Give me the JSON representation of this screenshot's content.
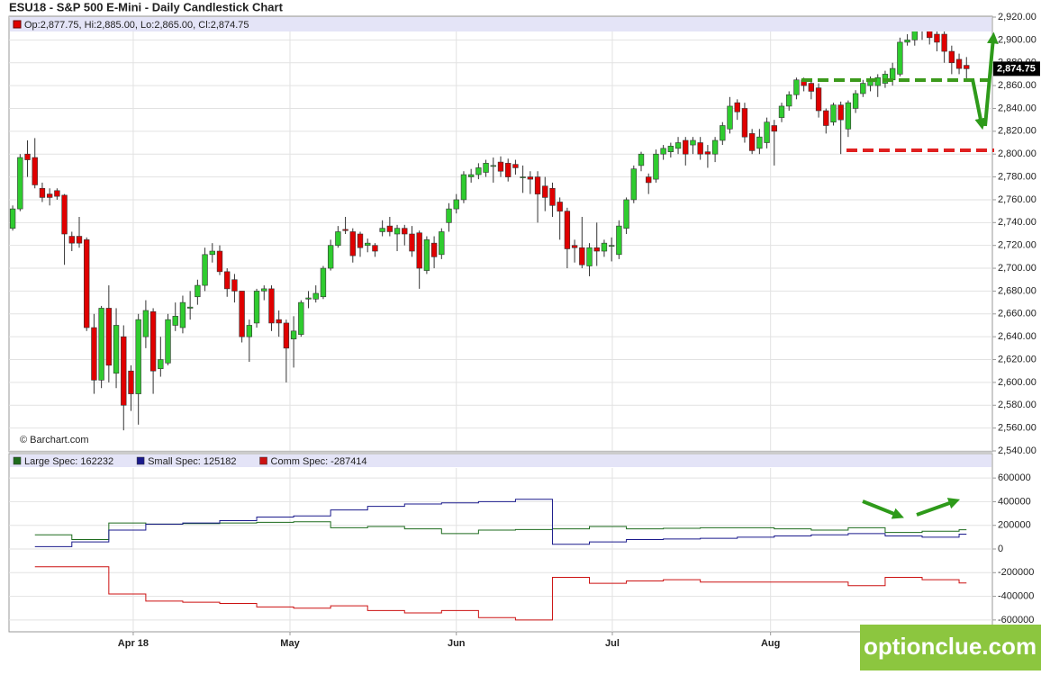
{
  "chart_data": [
    {
      "type": "candlestick",
      "title": "ESU18 - S&P 500 E-Mini - Daily Candlestick Chart",
      "ohlc_legend": "Op:2,877.75, Hi:2,885.00, Lo:2,865.00, Cl:2,874.75",
      "source": "© Barchart.com",
      "last_price": 2874.75,
      "last_price_label": "2,874.75",
      "up_color": "#2fcc2f",
      "down_color": "#e00000",
      "open": [
        2735,
        2752,
        2800,
        2797,
        2770,
        2765,
        2768,
        2764,
        2728,
        2728,
        2725,
        2648,
        2602,
        2665,
        2608,
        2640,
        2610,
        2590,
        2640,
        2662,
        2612,
        2617,
        2650,
        2648,
        2665,
        2675,
        2685,
        2712,
        2715,
        2697,
        2690,
        2680,
        2640,
        2652,
        2680,
        2682,
        2655,
        2652,
        2638,
        2642,
        2673,
        2673,
        2675,
        2700,
        2720,
        2734,
        2732,
        2730,
        2720,
        2720,
        2732,
        2737,
        2730,
        2735,
        2730,
        2731,
        2698,
        2722,
        2712,
        2740,
        2752,
        2760,
        2780,
        2782,
        2784,
        2790,
        2793,
        2792,
        2791,
        2780,
        2780,
        2780,
        2772,
        2770,
        2758,
        2750,
        2720,
        2718,
        2702,
        2718,
        2715,
        2720,
        2712,
        2735,
        2760,
        2790,
        2780,
        2778,
        2800,
        2802,
        2805,
        2812,
        2808,
        2810,
        2802,
        2800,
        2812,
        2822,
        2845,
        2840,
        2818,
        2805,
        2810,
        2825,
        2832,
        2842,
        2852,
        2865,
        2862,
        2858,
        2838,
        2828,
        2843,
        2822,
        2840,
        2853,
        2860,
        2860,
        2862,
        2865,
        2870,
        2898,
        2900,
        2910,
        2915,
        2905,
        2905,
        2890,
        2883,
        2877.75
      ],
      "high": [
        2755,
        2800,
        2812,
        2814,
        2775,
        2770,
        2770,
        2765,
        2732,
        2745,
        2727,
        2660,
        2667,
        2685,
        2665,
        2650,
        2615,
        2660,
        2672,
        2665,
        2640,
        2660,
        2670,
        2676,
        2680,
        2690,
        2718,
        2722,
        2720,
        2700,
        2695,
        2680,
        2655,
        2682,
        2685,
        2685,
        2663,
        2655,
        2658,
        2672,
        2680,
        2685,
        2702,
        2725,
        2737,
        2745,
        2735,
        2732,
        2726,
        2722,
        2742,
        2745,
        2738,
        2738,
        2737,
        2733,
        2728,
        2728,
        2735,
        2757,
        2765,
        2785,
        2787,
        2792,
        2795,
        2797,
        2798,
        2796,
        2795,
        2790,
        2785,
        2785,
        2780,
        2775,
        2762,
        2753,
        2725,
        2745,
        2722,
        2740,
        2725,
        2727,
        2742,
        2762,
        2790,
        2802,
        2783,
        2804,
        2808,
        2810,
        2815,
        2815,
        2815,
        2815,
        2808,
        2815,
        2828,
        2850,
        2848,
        2845,
        2822,
        2822,
        2832,
        2830,
        2845,
        2855,
        2867,
        2867,
        2865,
        2862,
        2840,
        2845,
        2846,
        2847,
        2856,
        2865,
        2868,
        2870,
        2873,
        2880,
        2902,
        2905,
        2918,
        2920,
        2918,
        2912,
        2908,
        2895,
        2888,
        2885
      ],
      "low": [
        2733,
        2750,
        2780,
        2770,
        2758,
        2755,
        2760,
        2703,
        2715,
        2718,
        2645,
        2590,
        2595,
        2600,
        2595,
        2558,
        2575,
        2563,
        2630,
        2590,
        2605,
        2615,
        2645,
        2643,
        2655,
        2668,
        2680,
        2705,
        2694,
        2675,
        2670,
        2635,
        2618,
        2648,
        2672,
        2645,
        2640,
        2600,
        2613,
        2640,
        2665,
        2670,
        2673,
        2698,
        2718,
        2730,
        2705,
        2710,
        2714,
        2710,
        2728,
        2728,
        2715,
        2720,
        2710,
        2682,
        2695,
        2700,
        2708,
        2732,
        2748,
        2757,
        2775,
        2778,
        2780,
        2775,
        2780,
        2776,
        2782,
        2766,
        2765,
        2740,
        2750,
        2745,
        2725,
        2700,
        2705,
        2700,
        2693,
        2702,
        2710,
        2706,
        2708,
        2730,
        2757,
        2785,
        2765,
        2775,
        2795,
        2797,
        2800,
        2790,
        2800,
        2795,
        2788,
        2793,
        2808,
        2818,
        2830,
        2810,
        2800,
        2800,
        2805,
        2790,
        2828,
        2838,
        2848,
        2855,
        2848,
        2832,
        2818,
        2825,
        2800,
        2815,
        2836,
        2850,
        2855,
        2850,
        2858,
        2860,
        2868,
        2895,
        2895,
        2900,
        2896,
        2890,
        2880,
        2870,
        2870,
        2865
      ],
      "close": [
        2752,
        2797,
        2795,
        2773,
        2762,
        2762,
        2763,
        2730,
        2722,
        2722,
        2648,
        2602,
        2665,
        2615,
        2650,
        2580,
        2590,
        2655,
        2663,
        2610,
        2620,
        2655,
        2658,
        2670,
        2666,
        2685,
        2712,
        2715,
        2697,
        2682,
        2680,
        2640,
        2650,
        2680,
        2682,
        2652,
        2652,
        2630,
        2645,
        2670,
        2674,
        2678,
        2700,
        2720,
        2732,
        2733,
        2711,
        2718,
        2722,
        2715,
        2735,
        2732,
        2735,
        2730,
        2715,
        2700,
        2725,
        2710,
        2732,
        2752,
        2760,
        2782,
        2782,
        2788,
        2792,
        2790,
        2785,
        2780,
        2788,
        2780,
        2778,
        2765,
        2762,
        2755,
        2750,
        2717,
        2718,
        2703,
        2718,
        2715,
        2722,
        2720,
        2737,
        2760,
        2787,
        2800,
        2775,
        2800,
        2805,
        2807,
        2810,
        2800,
        2812,
        2800,
        2800,
        2812,
        2825,
        2842,
        2837,
        2815,
        2803,
        2815,
        2828,
        2820,
        2842,
        2852,
        2865,
        2860,
        2855,
        2838,
        2825,
        2843,
        2830,
        2845,
        2853,
        2862,
        2865,
        2867,
        2870,
        2875,
        2898,
        2900,
        2915,
        2917,
        2902,
        2898,
        2890,
        2880,
        2875,
        2874.75
      ],
      "xlim": [
        -0.5,
        132.5
      ],
      "xticks": [
        {
          "value": 16.3,
          "label": "Apr 18"
        },
        {
          "value": 37.5,
          "label": "May"
        },
        {
          "value": 60,
          "label": "Jun"
        },
        {
          "value": 81.1,
          "label": "Jul"
        },
        {
          "value": 102.5,
          "label": "Aug"
        }
      ],
      "ylim": [
        2540,
        2920
      ],
      "yticks": [
        {
          "value": 2540,
          "label": "2,540.00"
        },
        {
          "value": 2560,
          "label": "2,560.00"
        },
        {
          "value": 2580,
          "label": "2,580.00"
        },
        {
          "value": 2600,
          "label": "2,600.00"
        },
        {
          "value": 2620,
          "label": "2,620.00"
        },
        {
          "value": 2640,
          "label": "2,640.00"
        },
        {
          "value": 2660,
          "label": "2,660.00"
        },
        {
          "value": 2680,
          "label": "2,680.00"
        },
        {
          "value": 2700,
          "label": "2,700.00"
        },
        {
          "value": 2720,
          "label": "2,720.00"
        },
        {
          "value": 2740,
          "label": "2,740.00"
        },
        {
          "value": 2760,
          "label": "2,760.00"
        },
        {
          "value": 2780,
          "label": "2,780.00"
        },
        {
          "value": 2800,
          "label": "2,800.00"
        },
        {
          "value": 2820,
          "label": "2,820.00"
        },
        {
          "value": 2840,
          "label": "2,840.00"
        },
        {
          "value": 2860,
          "label": "2,860.00"
        },
        {
          "value": 2880,
          "label": "2,880.00"
        },
        {
          "value": 2900,
          "label": "2,900.00"
        },
        {
          "value": 2920,
          "label": "2,920.00"
        }
      ],
      "grid": true
    },
    {
      "type": "step",
      "x": [
        3,
        8,
        13,
        18,
        23,
        28,
        33,
        38,
        43,
        48,
        53,
        58,
        63,
        68,
        73,
        78,
        83,
        88,
        93,
        98,
        103,
        108,
        113,
        118,
        123,
        128
      ],
      "xlim": [
        -0.5,
        132.5
      ],
      "series": [
        {
          "name": "Large Spec",
          "legend_label": "Large Spec: 162232",
          "color": "#1d6b1d",
          "values": [
            120000,
            80000,
            220000,
            210000,
            215000,
            220000,
            225000,
            230000,
            180000,
            190000,
            170000,
            130000,
            160000,
            165000,
            170000,
            190000,
            170000,
            175000,
            180000,
            180000,
            170000,
            160000,
            180000,
            140000,
            150000,
            162232
          ]
        },
        {
          "name": "Small Spec",
          "legend_label": "Small Spec: 125182",
          "color": "#1a1a8c",
          "values": [
            20000,
            60000,
            160000,
            210000,
            220000,
            240000,
            270000,
            280000,
            330000,
            360000,
            380000,
            390000,
            400000,
            420000,
            40000,
            60000,
            80000,
            85000,
            90000,
            100000,
            110000,
            120000,
            130000,
            110000,
            100000,
            125182
          ]
        },
        {
          "name": "Comm Spec",
          "legend_label": "Comm Spec: -287414",
          "color": "#cc1111",
          "values": [
            -150000,
            -150000,
            -380000,
            -440000,
            -450000,
            -460000,
            -490000,
            -500000,
            -480000,
            -520000,
            -540000,
            -520000,
            -580000,
            -600000,
            -240000,
            -290000,
            -270000,
            -260000,
            -280000,
            -280000,
            -280000,
            -280000,
            -310000,
            -240000,
            -260000,
            -287414
          ]
        }
      ],
      "ylim": [
        -700000,
        700000
      ],
      "yticks": [
        -600000,
        -400000,
        -200000,
        0,
        200000,
        400000,
        600000
      ],
      "grid": true
    }
  ],
  "watermark": "optionclue.com"
}
